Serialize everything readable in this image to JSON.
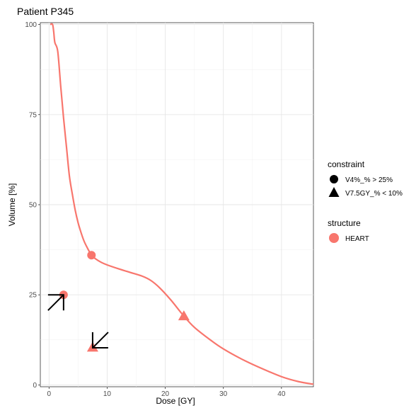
{
  "chart_data": {
    "type": "line",
    "title": "Patient P345",
    "xlabel": "Dose [GY]",
    "ylabel": "Volume [%]",
    "xlim": [
      -1.5,
      45.5
    ],
    "ylim": [
      -0.5,
      100.5
    ],
    "x_ticks": [
      0,
      10,
      20,
      30,
      40
    ],
    "y_ticks": [
      0,
      25,
      50,
      75,
      100
    ],
    "grid": true,
    "legend_position": "right",
    "series": [
      {
        "name": "HEART",
        "color": "#F8766D",
        "points": [
          [
            0.2,
            100
          ],
          [
            0.6,
            100
          ],
          [
            0.8,
            98
          ],
          [
            1.0,
            95
          ],
          [
            1.5,
            92.5
          ],
          [
            2.0,
            83
          ],
          [
            2.5,
            74
          ],
          [
            3.0,
            66
          ],
          [
            3.5,
            58
          ],
          [
            4.0,
            53
          ],
          [
            4.5,
            48.5
          ],
          [
            5.0,
            45
          ],
          [
            5.5,
            42.3
          ],
          [
            6.0,
            40
          ],
          [
            6.5,
            38.3
          ],
          [
            7.3,
            36
          ],
          [
            8.0,
            35
          ],
          [
            9.0,
            34
          ],
          [
            10.0,
            33.3
          ],
          [
            12.0,
            32.2
          ],
          [
            14.0,
            31.2
          ],
          [
            16.0,
            30.2
          ],
          [
            17.5,
            29.0
          ],
          [
            19.0,
            27.0
          ],
          [
            21.0,
            23.5
          ],
          [
            23.0,
            19.5
          ],
          [
            25.0,
            16.0
          ],
          [
            28.0,
            12.2
          ],
          [
            30.0,
            10.0
          ],
          [
            33.0,
            7.3
          ],
          [
            36.0,
            5.0
          ],
          [
            40.0,
            2.3
          ],
          [
            43.0,
            0.9
          ],
          [
            45.5,
            0.2
          ]
        ]
      }
    ],
    "constraints": [
      {
        "label": "V4%_% > 25%",
        "shape": "circle"
      },
      {
        "label": "V7.5GY_% < 10%",
        "shape": "triangle"
      }
    ],
    "markers": [
      {
        "x": 7.3,
        "y": 36,
        "shape": "circle",
        "color": "#F8766D"
      },
      {
        "x": 2.5,
        "y": 25,
        "shape": "circle",
        "color": "#F8766D"
      },
      {
        "x": 23.2,
        "y": 19,
        "shape": "triangle",
        "color": "#F8766D"
      },
      {
        "x": 7.5,
        "y": 10.3,
        "shape": "triangle",
        "color": "#F8766D"
      }
    ],
    "arrows": [
      {
        "x": 2.5,
        "y": 25,
        "direction": "up-right"
      },
      {
        "x": 7.5,
        "y": 10.3,
        "direction": "down-left"
      }
    ],
    "legend": {
      "constraint_title": "constraint",
      "structure_title": "structure",
      "structures": [
        {
          "label": "HEART",
          "color": "#F8766D"
        }
      ]
    }
  }
}
